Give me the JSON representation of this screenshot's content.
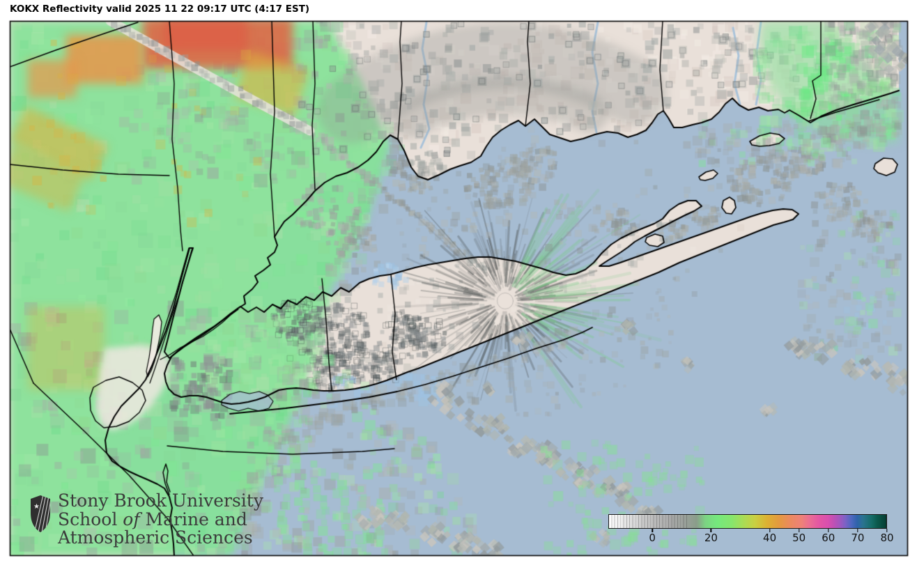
{
  "title": "KOKX Reflectivity valid 2025 11 22 09:17 UTC (4:17 EST)",
  "logo": {
    "line1": "Stony Brook University",
    "line2_pre": "School ",
    "line2_italic": "of",
    "line2_post": " Marine and",
    "line3": "Atmospheric Sciences"
  },
  "colorbar": {
    "min": -15,
    "max": 80,
    "units": "dBZ",
    "ticks": [
      0,
      20,
      40,
      50,
      60,
      70,
      80
    ],
    "stops": [
      {
        "v": -15,
        "c": "#ffffff"
      },
      {
        "v": -8,
        "c": "#e0e0e0"
      },
      {
        "v": 0,
        "c": "#bdbdbd"
      },
      {
        "v": 6,
        "c": "#aaaaaa"
      },
      {
        "v": 11,
        "c": "#9aa09a"
      },
      {
        "v": 15,
        "c": "#8a9d8a"
      },
      {
        "v": 18,
        "c": "#7cd383"
      },
      {
        "v": 22,
        "c": "#75e87d"
      },
      {
        "v": 27,
        "c": "#86e66d"
      },
      {
        "v": 31,
        "c": "#a9dc55"
      },
      {
        "v": 35,
        "c": "#c9cf42"
      },
      {
        "v": 39,
        "c": "#dcb232"
      },
      {
        "v": 43,
        "c": "#e39a3e"
      },
      {
        "v": 47,
        "c": "#eb8a5e"
      },
      {
        "v": 51,
        "c": "#ee8178"
      },
      {
        "v": 54,
        "c": "#ea6b95"
      },
      {
        "v": 57,
        "c": "#e356a4"
      },
      {
        "v": 60,
        "c": "#d94fae"
      },
      {
        "v": 62,
        "c": "#c050b5"
      },
      {
        "v": 64,
        "c": "#a257be"
      },
      {
        "v": 66,
        "c": "#7b62c5"
      },
      {
        "v": 68,
        "c": "#4f68c0"
      },
      {
        "v": 70,
        "c": "#2f63ab"
      },
      {
        "v": 72,
        "c": "#2a7390"
      },
      {
        "v": 75,
        "c": "#156c67"
      },
      {
        "v": 77,
        "c": "#0b584b"
      },
      {
        "v": 79.5,
        "c": "#074237"
      },
      {
        "v": 80,
        "c": "#05352a"
      }
    ]
  },
  "palette": {
    "water": "#a6bcd2",
    "land": "#e9e0d9",
    "land_light": "#f2ebe4",
    "land_shade": "#d9ccc5",
    "nyc_light": "#efe8e1",
    "echo_green": "#85e298",
    "echo_green_bright": "#6ee886",
    "echo_green_pale": "#a9e4ab",
    "echo_gold": "#dcb23e",
    "echo_orange": "#e8954a",
    "echo_red": "#de6847",
    "echo_gray": "#9aa3a2",
    "echo_gray_dark": "#6b7375",
    "cluster_gray": "#aeb4b2",
    "echo_blue": "#9fc3e2",
    "river": "#a9c3da",
    "boundary": "#000000",
    "frame": "#000000",
    "logo_color": "#3b3b3b"
  }
}
